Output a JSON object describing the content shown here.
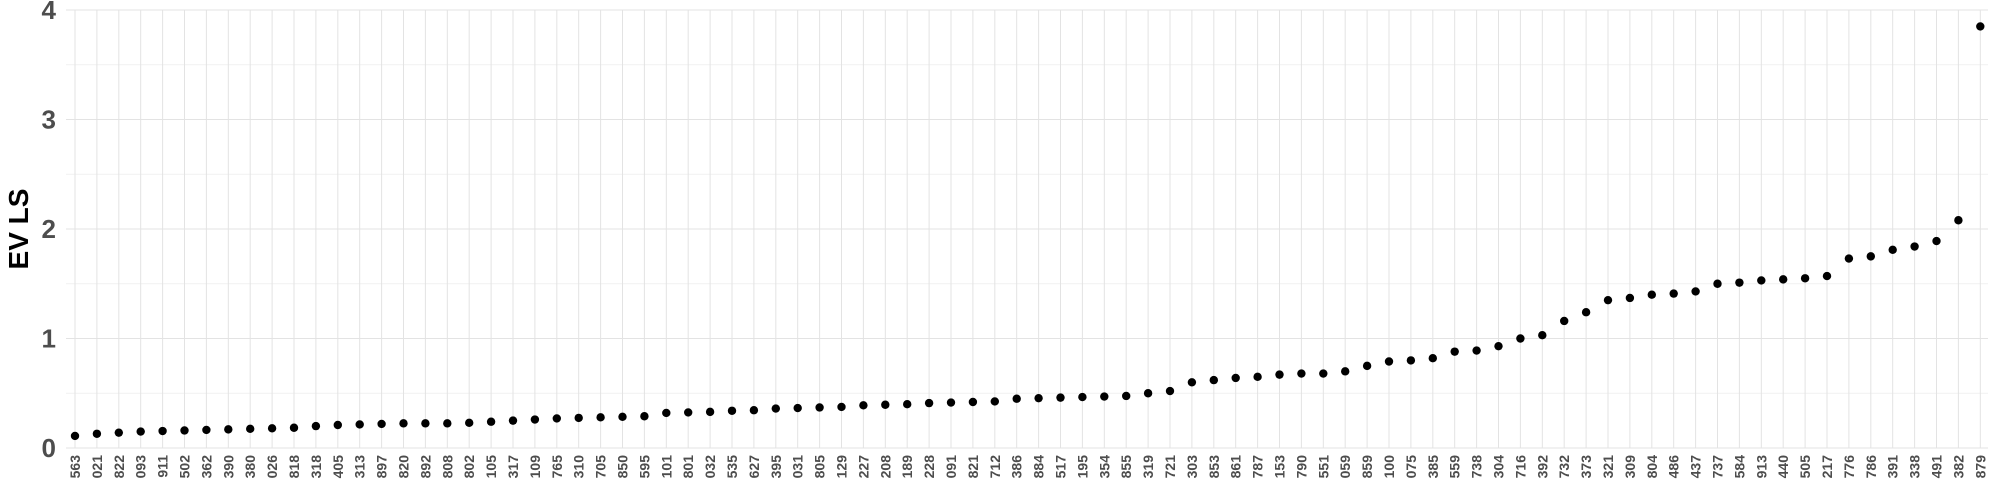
{
  "chart_data": {
    "type": "scatter",
    "title": "",
    "xlabel": "",
    "ylabel": "EV LS",
    "ylim": [
      0,
      4
    ],
    "yticks": [
      0,
      1,
      2,
      3,
      4
    ],
    "grid": true,
    "legend": "none",
    "colors": {
      "point": "#000000",
      "grid": "#e3e3e3",
      "background": "#ffffff"
    },
    "categories": [
      "563",
      "021",
      "822",
      "093",
      "911",
      "502",
      "362",
      "390",
      "380",
      "026",
      "818",
      "318",
      "405",
      "313",
      "897",
      "820",
      "892",
      "808",
      "802",
      "105",
      "317",
      "109",
      "765",
      "310",
      "705",
      "850",
      "595",
      "101",
      "801",
      "032",
      "535",
      "627",
      "395",
      "031",
      "805",
      "129",
      "227",
      "208",
      "189",
      "228",
      "091",
      "821",
      "712",
      "386",
      "884",
      "517",
      "195",
      "354",
      "855",
      "319",
      "721",
      "303",
      "853",
      "861",
      "787",
      "153",
      "790",
      "551",
      "059",
      "859",
      "100",
      "075",
      "385",
      "559",
      "738",
      "304",
      "716",
      "392",
      "732",
      "373",
      "321",
      "309",
      "804",
      "486",
      "437",
      "737",
      "584",
      "913",
      "440",
      "505",
      "217",
      "776",
      "786",
      "391",
      "338",
      "491",
      "382",
      "879"
    ],
    "values": [
      0.11,
      0.13,
      0.14,
      0.15,
      0.155,
      0.16,
      0.165,
      0.17,
      0.175,
      0.18,
      0.185,
      0.2,
      0.21,
      0.215,
      0.22,
      0.225,
      0.225,
      0.225,
      0.23,
      0.24,
      0.25,
      0.26,
      0.27,
      0.275,
      0.28,
      0.285,
      0.29,
      0.32,
      0.325,
      0.33,
      0.34,
      0.345,
      0.36,
      0.365,
      0.37,
      0.375,
      0.39,
      0.395,
      0.4,
      0.41,
      0.415,
      0.42,
      0.425,
      0.45,
      0.455,
      0.46,
      0.465,
      0.47,
      0.475,
      0.5,
      0.52,
      0.6,
      0.62,
      0.64,
      0.65,
      0.67,
      0.68,
      0.68,
      0.7,
      0.75,
      0.79,
      0.8,
      0.82,
      0.88,
      0.89,
      0.93,
      1.0,
      1.03,
      1.16,
      1.24,
      1.35,
      1.37,
      1.4,
      1.41,
      1.43,
      1.5,
      1.51,
      1.53,
      1.54,
      1.55,
      1.57,
      1.73,
      1.75,
      1.81,
      1.84,
      1.89,
      2.08,
      3.85
    ]
  }
}
